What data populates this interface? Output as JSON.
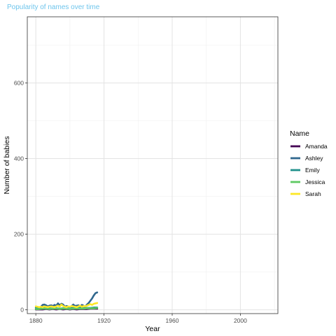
{
  "chart_data": {
    "type": "line",
    "title": "Popularity of names over time",
    "xlabel": "Year",
    "ylabel": "Number of babies",
    "xlim": [
      1875,
      2022
    ],
    "ylim": [
      -10,
      775
    ],
    "x_ticks": [
      1880,
      1920,
      1960,
      2000
    ],
    "y_ticks": [
      0,
      200,
      400,
      600
    ],
    "grid": true,
    "legend": {
      "title": "Name",
      "position": "right"
    },
    "series": [
      {
        "name": "Amanda",
        "color": "#440154",
        "x": [
          1880,
          1882,
          1884,
          1886,
          1888,
          1890,
          1892,
          1894,
          1896,
          1898,
          1900,
          1902,
          1904,
          1906,
          1908,
          1910,
          1912,
          1914,
          1916
        ],
        "y": [
          1,
          1,
          1,
          2,
          1,
          2,
          1,
          2,
          1,
          2,
          1,
          2,
          1,
          2,
          2,
          2,
          3,
          3,
          3
        ]
      },
      {
        "name": "Ashley",
        "color": "#31688e",
        "x": [
          1880,
          1881,
          1882,
          1883,
          1884,
          1885,
          1886,
          1887,
          1888,
          1889,
          1890,
          1891,
          1892,
          1893,
          1894,
          1895,
          1896,
          1897,
          1898,
          1899,
          1900,
          1901,
          1902,
          1903,
          1904,
          1905,
          1906,
          1907,
          1908,
          1909,
          1910,
          1911,
          1912,
          1913,
          1914,
          1915,
          1916
        ],
        "y": [
          6,
          5,
          6,
          8,
          13,
          14,
          12,
          9,
          11,
          12,
          10,
          13,
          11,
          17,
          12,
          16,
          14,
          8,
          10,
          9,
          7,
          10,
          14,
          10,
          11,
          12,
          9,
          13,
          11,
          8,
          14,
          18,
          24,
          30,
          38,
          44,
          46
        ]
      },
      {
        "name": "Emily",
        "color": "#21918c",
        "x": [
          1880,
          1882,
          1884,
          1886,
          1888,
          1890,
          1892,
          1894,
          1896,
          1898,
          1900,
          1902,
          1904,
          1906,
          1908,
          1910,
          1912,
          1914,
          1916
        ],
        "y": [
          4,
          3,
          5,
          3,
          4,
          3,
          4,
          3,
          4,
          3,
          4,
          5,
          4,
          5,
          4,
          5,
          5,
          6,
          6
        ]
      },
      {
        "name": "Jessica",
        "color": "#5ec962",
        "x": [
          1880,
          1882,
          1884,
          1886,
          1888,
          1890,
          1892,
          1894,
          1896,
          1898,
          1900,
          1902,
          1904,
          1906,
          1908,
          1910,
          1912,
          1914,
          1916
        ],
        "y": [
          2,
          2,
          3,
          3,
          2,
          3,
          3,
          2,
          3,
          3,
          2,
          3,
          3,
          3,
          3,
          4,
          4,
          4,
          5
        ]
      },
      {
        "name": "Sarah",
        "color": "#fde725",
        "x": [
          1880,
          1881,
          1882,
          1883,
          1884,
          1885,
          1886,
          1887,
          1888,
          1889,
          1890,
          1891,
          1892,
          1893,
          1894,
          1895,
          1896,
          1897,
          1898,
          1899,
          1900,
          1901,
          1902,
          1903,
          1904,
          1905,
          1906,
          1907,
          1908,
          1909,
          1910,
          1911,
          1912,
          1913,
          1914,
          1915,
          1916
        ],
        "y": [
          9,
          8,
          7,
          8,
          7,
          9,
          8,
          7,
          8,
          9,
          8,
          7,
          9,
          11,
          8,
          14,
          10,
          8,
          7,
          9,
          8,
          10,
          9,
          8,
          7,
          9,
          11,
          8,
          10,
          9,
          11,
          13,
          15,
          13,
          16,
          17,
          18
        ]
      }
    ]
  }
}
